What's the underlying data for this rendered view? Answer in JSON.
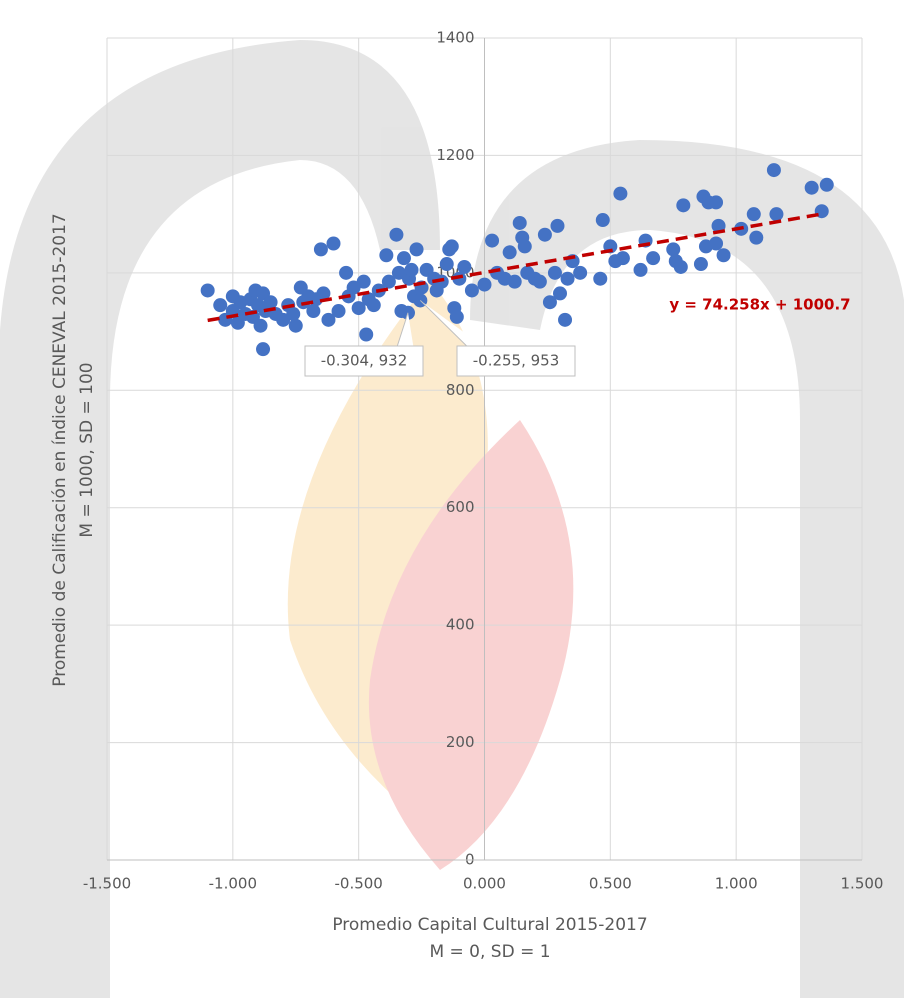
{
  "chart_data": {
    "type": "scatter",
    "color": "#4472c4",
    "x": [
      -1.1,
      -1.05,
      -1.03,
      -1.0,
      -1.0,
      -0.98,
      -0.97,
      -0.95,
      -0.93,
      -0.92,
      -0.91,
      -0.9,
      -0.89,
      -0.88,
      -0.88,
      -0.87,
      -0.85,
      -0.83,
      -0.8,
      -0.78,
      -0.76,
      -0.75,
      -0.73,
      -0.72,
      -0.7,
      -0.68,
      -0.67,
      -0.65,
      -0.64,
      -0.62,
      -0.6,
      -0.58,
      -0.55,
      -0.54,
      -0.52,
      -0.5,
      -0.48,
      -0.47,
      -0.46,
      -0.44,
      -0.42,
      -0.39,
      -0.38,
      -0.35,
      -0.34,
      -0.33,
      -0.32,
      -0.304,
      -0.3,
      -0.29,
      -0.28,
      -0.27,
      -0.255,
      -0.25,
      -0.23,
      -0.2,
      -0.19,
      -0.17,
      -0.15,
      -0.14,
      -0.13,
      -0.12,
      -0.11,
      -0.1,
      -0.08,
      -0.05,
      0.0,
      0.03,
      0.05,
      0.08,
      0.1,
      0.12,
      0.14,
      0.15,
      0.16,
      0.17,
      0.2,
      0.22,
      0.24,
      0.26,
      0.28,
      0.29,
      0.3,
      0.32,
      0.33,
      0.35,
      0.38,
      0.46,
      0.47,
      0.5,
      0.52,
      0.55,
      0.54,
      0.62,
      0.64,
      0.67,
      0.75,
      0.76,
      0.78,
      0.79,
      0.86,
      0.87,
      0.88,
      0.89,
      0.92,
      0.92,
      0.93,
      0.95,
      1.02,
      1.07,
      1.08,
      1.15,
      1.16,
      1.3,
      1.34,
      1.36
    ],
    "values": [
      970,
      945,
      920,
      960,
      935,
      915,
      950,
      930,
      955,
      925,
      970,
      945,
      910,
      965,
      870,
      935,
      950,
      930,
      920,
      945,
      930,
      910,
      975,
      950,
      960,
      935,
      955,
      1040,
      965,
      920,
      1050,
      935,
      1000,
      960,
      975,
      940,
      985,
      895,
      955,
      945,
      970,
      1030,
      985,
      1065,
      1000,
      935,
      1025,
      932,
      990,
      1005,
      960,
      1040,
      953,
      975,
      1005,
      990,
      970,
      985,
      1015,
      1040,
      1045,
      940,
      925,
      990,
      1010,
      970,
      980,
      1055,
      1000,
      990,
      1035,
      985,
      1085,
      1060,
      1045,
      1000,
      990,
      985,
      1065,
      950,
      1000,
      1080,
      965,
      920,
      990,
      1020,
      1000,
      990,
      1090,
      1045,
      1020,
      1025,
      1135,
      1005,
      1055,
      1025,
      1040,
      1020,
      1010,
      1115,
      1015,
      1130,
      1045,
      1120,
      1050,
      1120,
      1080,
      1030,
      1075,
      1100,
      1060,
      1175,
      1100,
      1145,
      1105,
      1150
    ],
    "xlim": [
      -1.5,
      1.5
    ],
    "xticks": [
      {
        "value": -1.5,
        "label": "-1.500"
      },
      {
        "value": -1.0,
        "label": "-1.000"
      },
      {
        "value": -0.5,
        "label": "-0.500"
      },
      {
        "value": 0,
        "label": "0.000"
      },
      {
        "value": 0.5,
        "label": "0.500"
      },
      {
        "value": 1.0,
        "label": "1.000"
      },
      {
        "value": 1.5,
        "label": "1.500"
      }
    ],
    "ylim": [
      0,
      1400
    ],
    "yticks": [
      0,
      200,
      400,
      600,
      800,
      1000,
      1200,
      1400
    ],
    "grid": true,
    "x_label": [
      "Promedio Capital Cultural 2015-2017",
      "M = 0, SD = 1"
    ],
    "y_label": [
      "Promedio de Calificación en índice CENEVAL 2015-2017",
      "M = 1000, SD = 100"
    ],
    "trendline": {
      "slope": 74.258,
      "intercept": 1000.7,
      "label": "y = 74.258x + 1000.7",
      "color": "#c00000",
      "xrange": [
        -1.1,
        1.35
      ]
    },
    "annotations": [
      {
        "text": "-0.304, 932",
        "x": -0.304,
        "y": 932
      },
      {
        "text": "-0.255, 953",
        "x": -0.255,
        "y": 953
      }
    ]
  }
}
